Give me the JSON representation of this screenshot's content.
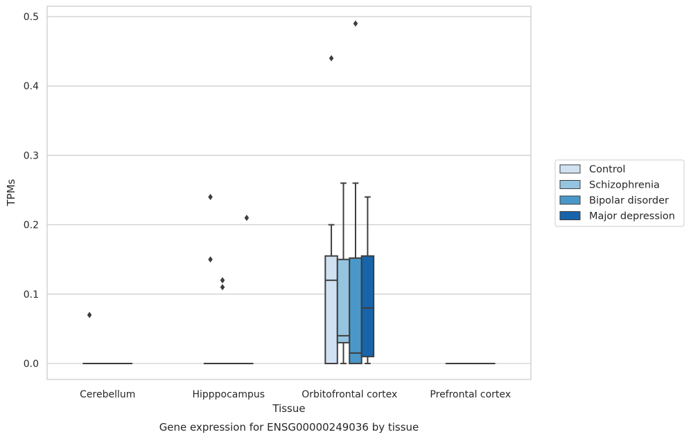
{
  "chart_data": {
    "type": "box",
    "caption": "Gene expression for ENSG00000249036 by tissue",
    "xlabel": "Tissue",
    "ylabel": "TPMs",
    "ylim": [
      -0.023,
      0.515
    ],
    "yticks": [
      0.0,
      0.1,
      0.2,
      0.3,
      0.4,
      0.5
    ],
    "ytick_labels": [
      "0.0",
      "0.1",
      "0.2",
      "0.3",
      "0.4",
      "0.5"
    ],
    "grid": "horizontal",
    "legend_position": "outside-right",
    "categories": [
      "Cerebellum",
      "Hipppocampus",
      "Orbitofrontal cortex",
      "Prefrontal cortex"
    ],
    "series": [
      {
        "name": "Control",
        "color": "#d0e1f2",
        "boxes": [
          {
            "category": "Cerebellum",
            "whisker_low": 0,
            "q1": 0,
            "median": 0,
            "q3": 0,
            "whisker_high": 0,
            "outliers": [
              0.07
            ]
          },
          {
            "category": "Hipppocampus",
            "whisker_low": 0,
            "q1": 0,
            "median": 0,
            "q3": 0,
            "whisker_high": 0,
            "outliers": [
              0.24,
              0.15
            ]
          },
          {
            "category": "Orbitofrontal cortex",
            "whisker_low": 0,
            "q1": 0,
            "median": 0.12,
            "q3": 0.155,
            "whisker_high": 0.2,
            "outliers": [
              0.44
            ]
          },
          {
            "category": "Prefrontal cortex",
            "whisker_low": 0,
            "q1": 0,
            "median": 0,
            "q3": 0,
            "whisker_high": 0,
            "outliers": []
          }
        ]
      },
      {
        "name": "Schizophrenia",
        "color": "#94c4df",
        "boxes": [
          {
            "category": "Cerebellum",
            "whisker_low": 0,
            "q1": 0,
            "median": 0,
            "q3": 0,
            "whisker_high": 0,
            "outliers": []
          },
          {
            "category": "Hipppocampus",
            "whisker_low": 0,
            "q1": 0,
            "median": 0,
            "q3": 0,
            "whisker_high": 0,
            "outliers": [
              0.12,
              0.11
            ]
          },
          {
            "category": "Orbitofrontal cortex",
            "whisker_low": 0,
            "q1": 0.03,
            "median": 0.04,
            "q3": 0.15,
            "whisker_high": 0.26,
            "outliers": []
          },
          {
            "category": "Prefrontal cortex",
            "whisker_low": 0,
            "q1": 0,
            "median": 0,
            "q3": 0,
            "whisker_high": 0,
            "outliers": []
          }
        ]
      },
      {
        "name": "Bipolar disorder",
        "color": "#4a98c9",
        "boxes": [
          {
            "category": "Cerebellum",
            "whisker_low": 0,
            "q1": 0,
            "median": 0,
            "q3": 0,
            "whisker_high": 0,
            "outliers": []
          },
          {
            "category": "Hipppocampus",
            "whisker_low": 0,
            "q1": 0,
            "median": 0,
            "q3": 0,
            "whisker_high": 0,
            "outliers": []
          },
          {
            "category": "Orbitofrontal cortex",
            "whisker_low": 0,
            "q1": 0,
            "median": 0.015,
            "q3": 0.152,
            "whisker_high": 0.26,
            "outliers": [
              0.49
            ]
          },
          {
            "category": "Prefrontal cortex",
            "whisker_low": 0,
            "q1": 0,
            "median": 0,
            "q3": 0,
            "whisker_high": 0,
            "outliers": []
          }
        ]
      },
      {
        "name": "Major depression",
        "color": "#1764ab",
        "boxes": [
          {
            "category": "Cerebellum",
            "whisker_low": 0,
            "q1": 0,
            "median": 0,
            "q3": 0,
            "whisker_high": 0,
            "outliers": []
          },
          {
            "category": "Hipppocampus",
            "whisker_low": 0,
            "q1": 0,
            "median": 0,
            "q3": 0,
            "whisker_high": 0,
            "outliers": [
              0.21
            ]
          },
          {
            "category": "Orbitofrontal cortex",
            "whisker_low": 0,
            "q1": 0.01,
            "median": 0.08,
            "q3": 0.155,
            "whisker_high": 0.24,
            "outliers": []
          },
          {
            "category": "Prefrontal cortex",
            "whisker_low": 0,
            "q1": 0,
            "median": 0,
            "q3": 0,
            "whisker_high": 0,
            "outliers": []
          }
        ]
      }
    ],
    "style": {
      "line_color": "#3d3d3d",
      "grid_color": "#cccccc",
      "frame_color": "#cccccc",
      "background": "#ffffff"
    }
  }
}
